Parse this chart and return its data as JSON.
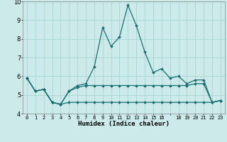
{
  "xlabel": "Humidex (Indice chaleur)",
  "background_color": "#cceaea",
  "grid_color": "#aad4d4",
  "line_color": "#1a7070",
  "x_hours": [
    0,
    1,
    2,
    3,
    4,
    5,
    6,
    7,
    8,
    9,
    10,
    11,
    12,
    13,
    14,
    15,
    16,
    17,
    18,
    19,
    20,
    21,
    22,
    23
  ],
  "line_top": [
    5.9,
    5.2,
    5.3,
    4.6,
    4.5,
    5.2,
    5.5,
    5.6,
    6.5,
    8.6,
    7.6,
    8.1,
    9.8,
    8.7,
    7.3,
    6.2,
    6.4,
    5.9,
    6.0,
    5.6,
    5.8,
    5.8,
    4.6,
    4.7
  ],
  "line_mid": [
    5.9,
    5.2,
    5.3,
    4.6,
    4.5,
    5.2,
    5.4,
    5.5,
    5.5,
    5.5,
    5.5,
    5.5,
    5.5,
    5.5,
    5.5,
    5.5,
    5.5,
    5.5,
    5.5,
    5.5,
    5.6,
    5.6,
    4.6,
    4.7
  ],
  "line_bot": [
    5.9,
    5.2,
    5.3,
    4.6,
    4.5,
    4.6,
    4.6,
    4.6,
    4.6,
    4.6,
    4.6,
    4.6,
    4.6,
    4.6,
    4.6,
    4.6,
    4.6,
    4.6,
    4.6,
    4.6,
    4.6,
    4.6,
    4.6,
    4.7
  ],
  "ylim": [
    4.0,
    10.0
  ],
  "xlim": [
    -0.5,
    23.5
  ],
  "yticks": [
    4,
    5,
    6,
    7,
    8,
    9,
    10
  ],
  "xticks": [
    0,
    1,
    2,
    3,
    4,
    5,
    6,
    7,
    8,
    9,
    10,
    11,
    12,
    13,
    14,
    15,
    16,
    17,
    18,
    19,
    20,
    21,
    22,
    23
  ],
  "xtick_labels": [
    "0",
    "1",
    "2",
    "3",
    "4",
    "5",
    "6",
    "7",
    "8",
    "9",
    "10",
    "11",
    "12",
    "13",
    "14",
    "15",
    "16",
    "",
    "18",
    "19",
    "20",
    "21",
    "22",
    "23"
  ],
  "markersize": 2.0,
  "linewidth": 0.9
}
